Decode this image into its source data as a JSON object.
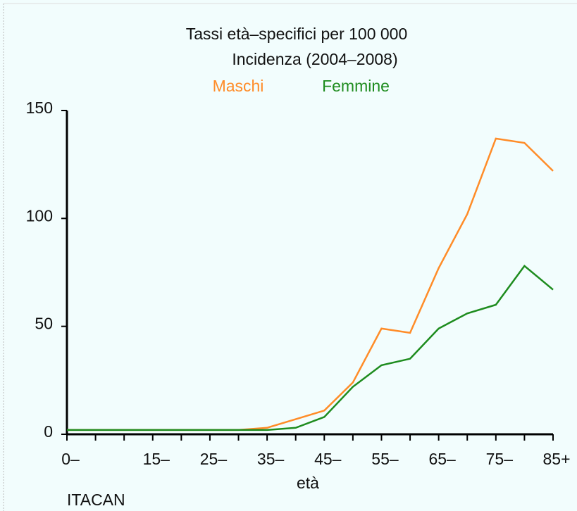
{
  "chart_data": {
    "type": "line",
    "title": "Tassi età–specifici per 100 000",
    "subtitle": "Incidenza (2004–2008)",
    "x_label": "età",
    "annotation": "ITACAN",
    "categories": [
      "0–",
      null,
      null,
      "15–",
      null,
      "25–",
      null,
      "35–",
      null,
      "45–",
      null,
      "55–",
      null,
      "65–",
      null,
      "75–",
      null,
      "85+"
    ],
    "series": [
      {
        "name": "Maschi",
        "color": "#ff8c28",
        "values": [
          2,
          2,
          2,
          2,
          2,
          2,
          2,
          3,
          7,
          11,
          24,
          49,
          47,
          77,
          102,
          137,
          135,
          122
        ]
      },
      {
        "name": "Femmine",
        "color": "#1e8c1e",
        "values": [
          2,
          2,
          2,
          2,
          2,
          2,
          2,
          2,
          3,
          8,
          22,
          32,
          35,
          49,
          56,
          60,
          78,
          67
        ]
      }
    ],
    "ylim": [
      0,
      150
    ],
    "yticks": [
      0,
      50,
      100,
      150
    ]
  }
}
